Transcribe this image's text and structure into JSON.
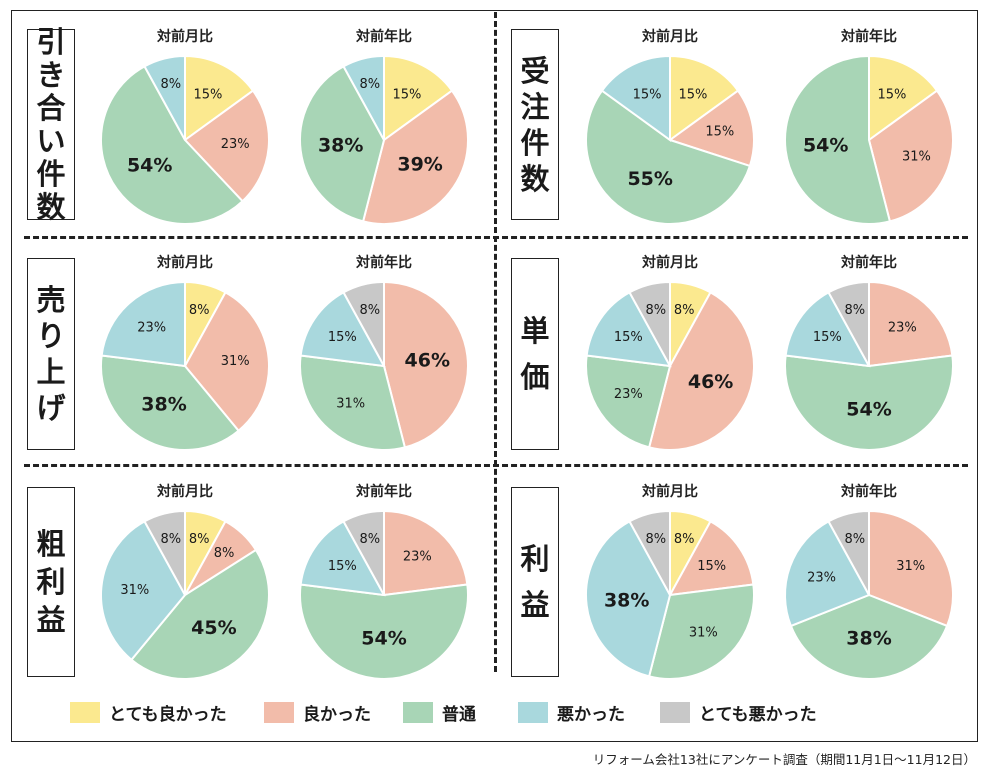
{
  "colors": {
    "very_good": "#fbe98f",
    "good": "#f2bcaa",
    "normal": "#a8d5b6",
    "bad": "#a9d8dd",
    "very_bad": "#c8c8c8"
  },
  "legend": [
    {
      "key": "very_good",
      "label": "とても良かった"
    },
    {
      "key": "good",
      "label": "良かった"
    },
    {
      "key": "normal",
      "label": "普通"
    },
    {
      "key": "bad",
      "label": "悪かった"
    },
    {
      "key": "very_bad",
      "label": "とても悪かった"
    }
  ],
  "source_note": "リフォーム会社13社にアンケート調査（期間11月1日〜11月12日）",
  "chart_data": [
    {
      "type": "pie",
      "category": "引き合い件数",
      "title": "対前月比",
      "slices": [
        {
          "key": "very_good",
          "value": 15,
          "label": "15%"
        },
        {
          "key": "good",
          "value": 23,
          "label": "23%"
        },
        {
          "key": "normal",
          "value": 54,
          "label": "54%"
        },
        {
          "key": "bad",
          "value": 8,
          "label": "8%"
        }
      ]
    },
    {
      "type": "pie",
      "category": "引き合い件数",
      "title": "対前年比",
      "slices": [
        {
          "key": "very_good",
          "value": 15,
          "label": "15%"
        },
        {
          "key": "good",
          "value": 39,
          "label": "39%"
        },
        {
          "key": "normal",
          "value": 38,
          "label": "38%"
        },
        {
          "key": "bad",
          "value": 8,
          "label": "8%"
        }
      ]
    },
    {
      "type": "pie",
      "category": "受注件数",
      "title": "対前月比",
      "slices": [
        {
          "key": "very_good",
          "value": 15,
          "label": "15%"
        },
        {
          "key": "good",
          "value": 15,
          "label": "15%"
        },
        {
          "key": "normal",
          "value": 55,
          "label": "55%"
        },
        {
          "key": "bad",
          "value": 15,
          "label": "15%"
        }
      ]
    },
    {
      "type": "pie",
      "category": "受注件数",
      "title": "対前年比",
      "slices": [
        {
          "key": "very_good",
          "value": 15,
          "label": "15%"
        },
        {
          "key": "good",
          "value": 31,
          "label": "31%"
        },
        {
          "key": "normal",
          "value": 54,
          "label": "54%"
        }
      ]
    },
    {
      "type": "pie",
      "category": "売り上げ",
      "title": "対前月比",
      "slices": [
        {
          "key": "very_good",
          "value": 8,
          "label": "8%"
        },
        {
          "key": "good",
          "value": 31,
          "label": "31%"
        },
        {
          "key": "normal",
          "value": 38,
          "label": "38%"
        },
        {
          "key": "bad",
          "value": 23,
          "label": "23%"
        }
      ]
    },
    {
      "type": "pie",
      "category": "売り上げ",
      "title": "対前年比",
      "slices": [
        {
          "key": "good",
          "value": 46,
          "label": "46%"
        },
        {
          "key": "normal",
          "value": 31,
          "label": "31%"
        },
        {
          "key": "bad",
          "value": 15,
          "label": "15%"
        },
        {
          "key": "very_bad",
          "value": 8,
          "label": "8%"
        }
      ]
    },
    {
      "type": "pie",
      "category": "単価",
      "title": "対前月比",
      "slices": [
        {
          "key": "very_good",
          "value": 8,
          "label": "8%"
        },
        {
          "key": "good",
          "value": 46,
          "label": "46%"
        },
        {
          "key": "normal",
          "value": 23,
          "label": "23%"
        },
        {
          "key": "bad",
          "value": 15,
          "label": "15%"
        },
        {
          "key": "very_bad",
          "value": 8,
          "label": "8%"
        }
      ]
    },
    {
      "type": "pie",
      "category": "単価",
      "title": "対前年比",
      "slices": [
        {
          "key": "good",
          "value": 23,
          "label": "23%"
        },
        {
          "key": "normal",
          "value": 54,
          "label": "54%"
        },
        {
          "key": "bad",
          "value": 15,
          "label": "15%"
        },
        {
          "key": "very_bad",
          "value": 8,
          "label": "8%"
        }
      ]
    },
    {
      "type": "pie",
      "category": "粗利益",
      "title": "対前月比",
      "slices": [
        {
          "key": "very_good",
          "value": 8,
          "label": "8%"
        },
        {
          "key": "good",
          "value": 8,
          "label": "8%"
        },
        {
          "key": "normal",
          "value": 45,
          "label": "45%"
        },
        {
          "key": "bad",
          "value": 31,
          "label": "31%"
        },
        {
          "key": "very_bad",
          "value": 8,
          "label": "8%"
        }
      ]
    },
    {
      "type": "pie",
      "category": "粗利益",
      "title": "対前年比",
      "slices": [
        {
          "key": "good",
          "value": 23,
          "label": "23%"
        },
        {
          "key": "normal",
          "value": 54,
          "label": "54%"
        },
        {
          "key": "bad",
          "value": 15,
          "label": "15%"
        },
        {
          "key": "very_bad",
          "value": 8,
          "label": "8%"
        }
      ]
    },
    {
      "type": "pie",
      "category": "利益",
      "title": "対前月比",
      "slices": [
        {
          "key": "very_good",
          "value": 8,
          "label": "8%"
        },
        {
          "key": "good",
          "value": 15,
          "label": "15%"
        },
        {
          "key": "normal",
          "value": 31,
          "label": "31%"
        },
        {
          "key": "bad",
          "value": 38,
          "label": "38%"
        },
        {
          "key": "very_bad",
          "value": 8,
          "label": "8%"
        }
      ]
    },
    {
      "type": "pie",
      "category": "利益",
      "title": "対前年比",
      "slices": [
        {
          "key": "good",
          "value": 31,
          "label": "31%"
        },
        {
          "key": "normal",
          "value": 38,
          "label": "38%"
        },
        {
          "key": "bad",
          "value": 23,
          "label": "23%"
        },
        {
          "key": "very_bad",
          "value": 8,
          "label": "8%"
        }
      ]
    }
  ]
}
